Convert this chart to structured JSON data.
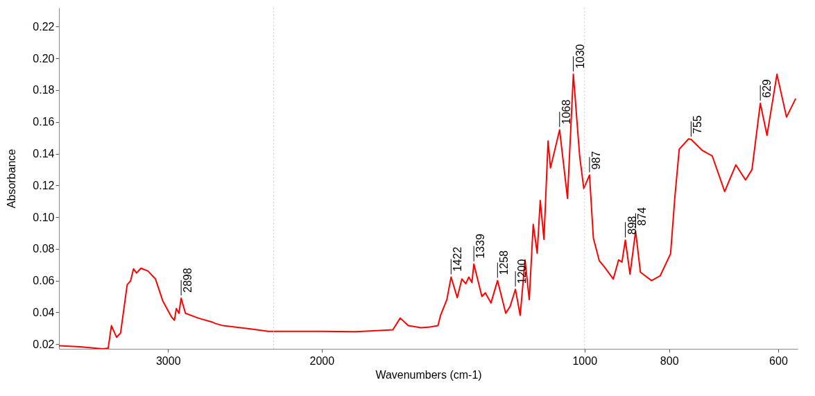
{
  "chart_data": {
    "type": "line",
    "xlabel": "Wavenumbers (cm-1)",
    "ylabel": "Absorbance",
    "log": "x",
    "xlim": [
      4000,
      570
    ],
    "xticks": [
      3000,
      2000,
      1000,
      800,
      600
    ],
    "ylim": [
      0.017,
      0.232
    ],
    "yticks": [
      0.02,
      0.04,
      0.06,
      0.08,
      {
        "value": 0.1,
        "label": "0.10"
      },
      0.12,
      0.14,
      0.16,
      0.18,
      {
        "value": 0.2,
        "label": "0.20"
      },
      0.22
    ],
    "x": [
      4000,
      3786,
      3565,
      3513,
      3483,
      3436,
      3400,
      3341,
      3312,
      3286,
      3260,
      3222,
      3163,
      3101,
      3041,
      2972,
      2950,
      2935,
      2915,
      2898,
      2865,
      2771,
      2669,
      2645,
      2594,
      2406,
      2304,
      2000,
      1828,
      1713,
      1658,
      1626,
      1592,
      1540,
      1503,
      1472,
      1462,
      1438,
      1422,
      1399,
      1382,
      1368,
      1357,
      1346,
      1339,
      1311,
      1299,
      1280,
      1258,
      1231,
      1217,
      1200,
      1185,
      1170,
      1157,
      1145,
      1133,
      1124,
      1113,
      1101,
      1094,
      1068,
      1046,
      1030,
      1013,
      1002,
      987,
      977,
      962,
      948,
      927,
      914,
      906,
      898,
      887,
      874,
      863,
      838,
      819,
      797,
      788,
      779,
      760,
      755,
      733,
      714,
      691,
      671,
      654,
      643,
      629,
      618,
      602,
      587,
      573
    ],
    "series": [
      {
        "color": "#ff0000",
        "values": [
          0.019,
          0.0183,
          0.017,
          0.0174,
          0.0316,
          0.0243,
          0.027,
          0.0575,
          0.0597,
          0.0674,
          0.0648,
          0.0678,
          0.066,
          0.061,
          0.047,
          0.037,
          0.035,
          0.0424,
          0.0394,
          0.0489,
          0.0394,
          0.0364,
          0.0338,
          0.0329,
          0.0316,
          0.0295,
          0.028,
          0.028,
          0.0278,
          0.0286,
          0.029,
          0.0364,
          0.0316,
          0.0303,
          0.0308,
          0.0316,
          0.0381,
          0.048,
          0.0622,
          0.0493,
          0.061,
          0.058,
          0.0622,
          0.0588,
          0.0704,
          0.05,
          0.0523,
          0.0459,
          0.06,
          0.0394,
          0.0437,
          0.0545,
          0.0381,
          0.073,
          0.048,
          0.0954,
          0.0773,
          0.1105,
          0.086,
          0.148,
          0.131,
          0.155,
          0.1118,
          0.19,
          0.1385,
          0.118,
          0.1265,
          0.0868,
          0.0726,
          0.0683,
          0.061,
          0.073,
          0.0717,
          0.0855,
          0.064,
          0.0911,
          0.0653,
          0.06,
          0.0631,
          0.0769,
          0.1127,
          0.1428,
          0.1493,
          0.149,
          0.142,
          0.1385,
          0.1161,
          0.1329,
          0.1234,
          0.1299,
          0.1717,
          0.1515,
          0.19,
          0.163,
          0.1747
        ]
      }
    ],
    "ref_lines": [
      {
        "axis": "x",
        "value": 2270,
        "color": "#c8c8c8",
        "line_style": "dotted"
      },
      {
        "axis": "x",
        "value": 1000,
        "color": "#c8c8c8",
        "line_style": "dotted"
      }
    ],
    "annotations": [
      {
        "text": "2898",
        "x": 2898,
        "y": 0.0489
      },
      {
        "text": "1422",
        "x": 1422,
        "y": 0.0622
      },
      {
        "text": "1339",
        "x": 1339,
        "y": 0.0704
      },
      {
        "text": "1258",
        "x": 1258,
        "y": 0.06
      },
      {
        "text": "1200",
        "x": 1200,
        "y": 0.0545
      },
      {
        "text": "1068",
        "x": 1068,
        "y": 0.155
      },
      {
        "text": "1030",
        "x": 1030,
        "y": 0.19
      },
      {
        "text": "987",
        "x": 987,
        "y": 0.1265
      },
      {
        "text": "898",
        "x": 898,
        "y": 0.0855
      },
      {
        "text": "874",
        "x": 874,
        "y": 0.0911
      },
      {
        "text": "755",
        "x": 755,
        "y": 0.149
      },
      {
        "text": "629",
        "x": 629,
        "y": 0.1717
      }
    ]
  }
}
